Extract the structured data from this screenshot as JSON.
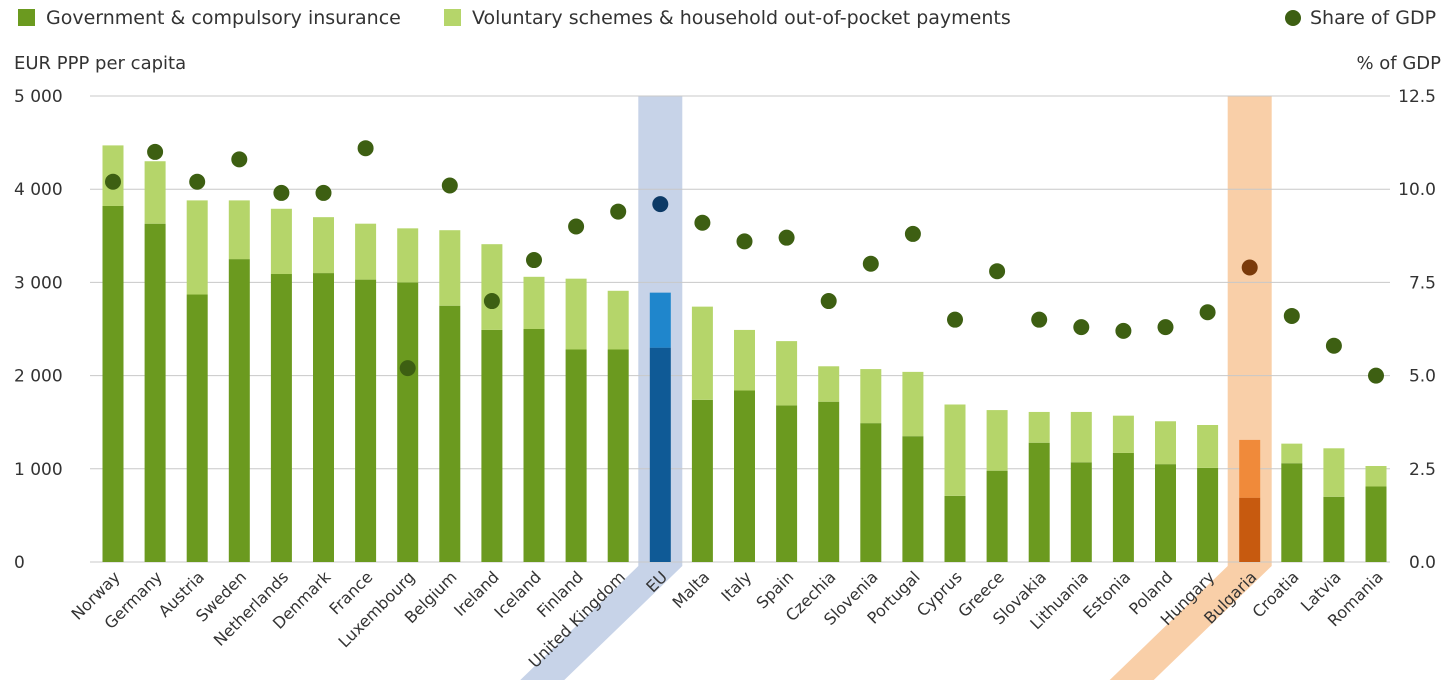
{
  "legend": {
    "gov_label": "Government & compulsory insurance",
    "vol_label": "Voluntary schemes & household out-of-pocket payments",
    "gdp_label": "Share of GDP"
  },
  "colors": {
    "gov": "#6b9a1f",
    "vol": "#b5d56a",
    "dot": "#3d5f12",
    "eu_band": "#c7d3e8",
    "eu_gov": "#0f5a96",
    "eu_vol": "#1f86cc",
    "eu_dot": "#0d3a66",
    "bg_band": "#f9cfa8",
    "bg_gov": "#c75a0f",
    "bg_vol": "#f08a3a",
    "bg_dot": "#7a3a0a"
  },
  "chart_data": {
    "type": "bar",
    "stacked": true,
    "y_left_label": "EUR PPP per capita",
    "y_right_label": "% of GDP",
    "y_left_ticks": [
      "5 000",
      "4 000",
      "3 000",
      "2 000",
      "1 000",
      "0"
    ],
    "y_right_ticks": [
      "12.5",
      "10.0",
      "7.5",
      "5.0",
      "2.5",
      "0.0"
    ],
    "y_left_range": [
      0,
      5000
    ],
    "y_right_range": [
      0,
      12.5
    ],
    "grid": true,
    "legend_position": "top",
    "highlighted": [
      "EU",
      "Bulgaria"
    ],
    "categories": [
      "Norway",
      "Germany",
      "Austria",
      "Sweden",
      "Netherlands",
      "Denmark",
      "France",
      "Luxembourg",
      "Belgium",
      "Ireland",
      "Iceland",
      "Finland",
      "United Kingdom",
      "EU",
      "Malta",
      "Italy",
      "Spain",
      "Czechia",
      "Slovenia",
      "Portugal",
      "Cyprus",
      "Greece",
      "Slovakia",
      "Lithuania",
      "Estonia",
      "Poland",
      "Hungary",
      "Bulgaria",
      "Croatia",
      "Latvia",
      "Romania"
    ],
    "series": [
      {
        "name": "Government & compulsory insurance",
        "axis": "left",
        "values": [
          3820,
          3630,
          2870,
          3250,
          3090,
          3100,
          3030,
          3000,
          2750,
          2490,
          2500,
          2280,
          2280,
          2300,
          1740,
          1840,
          1680,
          1720,
          1490,
          1350,
          710,
          980,
          1280,
          1070,
          1170,
          1050,
          1010,
          690,
          1060,
          700,
          810
        ]
      },
      {
        "name": "Voluntary schemes & household out-of-pocket payments",
        "axis": "left",
        "values": [
          650,
          670,
          1010,
          630,
          700,
          600,
          600,
          580,
          810,
          920,
          560,
          760,
          630,
          590,
          1000,
          650,
          690,
          380,
          580,
          690,
          980,
          650,
          330,
          540,
          400,
          460,
          460,
          620,
          210,
          520,
          220
        ]
      },
      {
        "name": "Share of GDP",
        "axis": "right",
        "type": "scatter",
        "values": [
          10.2,
          11.0,
          10.2,
          10.8,
          9.9,
          9.9,
          11.1,
          5.2,
          10.1,
          7.0,
          8.1,
          9.0,
          9.4,
          9.6,
          9.1,
          8.6,
          8.7,
          7.0,
          8.0,
          8.8,
          6.5,
          7.8,
          6.5,
          6.3,
          6.2,
          6.3,
          6.7,
          7.9,
          6.6,
          5.8,
          5.0
        ]
      }
    ]
  }
}
